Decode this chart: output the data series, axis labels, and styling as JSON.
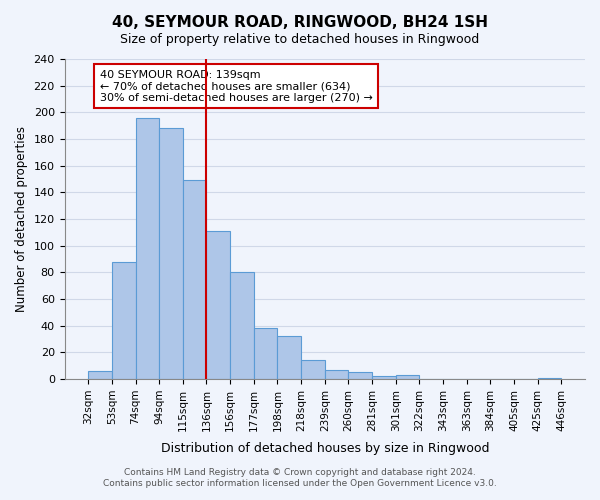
{
  "title": "40, SEYMOUR ROAD, RINGWOOD, BH24 1SH",
  "subtitle": "Size of property relative to detached houses in Ringwood",
  "xlabel": "Distribution of detached houses by size in Ringwood",
  "ylabel": "Number of detached properties",
  "bin_labels": [
    "32sqm",
    "53sqm",
    "74sqm",
    "94sqm",
    "115sqm",
    "136sqm",
    "156sqm",
    "177sqm",
    "198sqm",
    "218sqm",
    "239sqm",
    "260sqm",
    "281sqm",
    "301sqm",
    "322sqm",
    "343sqm",
    "363sqm",
    "384sqm",
    "405sqm",
    "425sqm",
    "446sqm"
  ],
  "bar_heights": [
    6,
    88,
    196,
    188,
    149,
    111,
    80,
    38,
    32,
    14,
    7,
    5,
    2,
    3,
    0,
    0,
    0,
    0,
    0,
    1
  ],
  "bar_color": "#aec6e8",
  "bar_edge_color": "#5b9bd5",
  "vline_x": 4,
  "vline_color": "#cc0000",
  "ylim": [
    0,
    240
  ],
  "yticks": [
    0,
    20,
    40,
    60,
    80,
    100,
    120,
    140,
    160,
    180,
    200,
    220,
    240
  ],
  "annotation_text": "40 SEYMOUR ROAD: 139sqm\n← 70% of detached houses are smaller (634)\n30% of semi-detached houses are larger (270) →",
  "annotation_box_color": "#ffffff",
  "annotation_border_color": "#cc0000",
  "footer_line1": "Contains HM Land Registry data © Crown copyright and database right 2024.",
  "footer_line2": "Contains public sector information licensed under the Open Government Licence v3.0.",
  "grid_color": "#d0d8e8",
  "background_color": "#f0f4fc"
}
